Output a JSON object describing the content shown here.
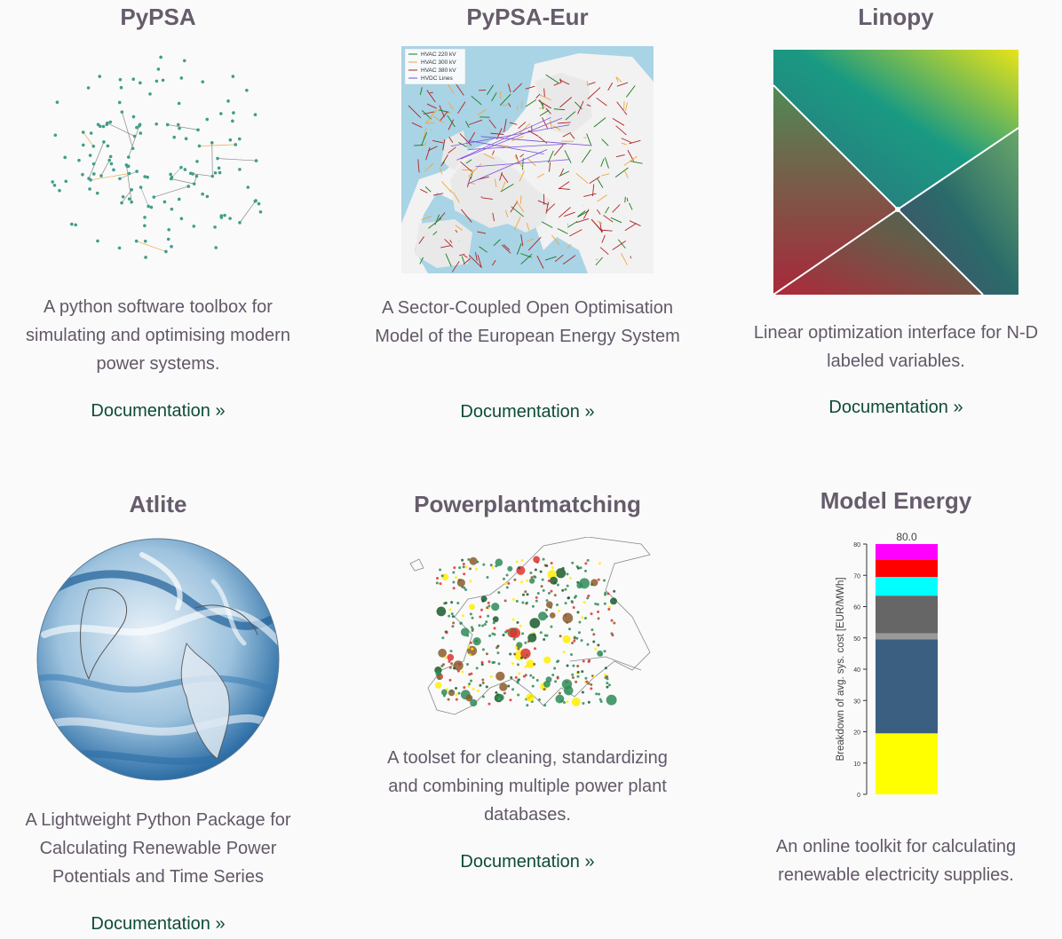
{
  "projects": [
    {
      "title": "PyPSA",
      "description": "A python software toolbox for simulating and optimising modern power systems.",
      "link_label": "Documentation »"
    },
    {
      "title": "PyPSA-Eur",
      "description": "A Sector-Coupled Open Optimisation Model of the European Energy System",
      "link_label": "Documentation »",
      "legend": [
        "HVAC 220 kV",
        "HVAC 300 kV",
        "HVAC 380 kV",
        "HVDC Lines"
      ]
    },
    {
      "title": "Linopy",
      "description": "Linear optimization interface for N-D labeled variables.",
      "link_label": "Documentation »"
    },
    {
      "title": "Atlite",
      "description": "A Lightweight Python Package for Calculating Renewable Power Potentials and Time Series",
      "link_label": "Documentation »"
    },
    {
      "title": "Powerplantmatching",
      "description": "A toolset for cleaning, standardizing and combining multiple power plant databases.",
      "link_label": "Documentation »"
    },
    {
      "title": "Model Energy",
      "description": "An online toolkit for calculating renewable electricity supplies.",
      "link_label": "Documentation »"
    }
  ],
  "chart_data": {
    "type": "bar",
    "stacked": true,
    "ylabel": "Breakdown of avg. sys. cost [EUR/MWh]",
    "ylim": [
      0,
      80
    ],
    "yticks": [
      "0",
      "10",
      "20",
      "30",
      "40",
      "50",
      "60",
      "70",
      "80"
    ],
    "total_label": "80.0",
    "series": [
      {
        "value": 19.5,
        "color": "#ffff00"
      },
      {
        "value": 30.0,
        "color": "#3b5f80"
      },
      {
        "value": 2.0,
        "color": "#9a9a9a"
      },
      {
        "value": 12.0,
        "color": "#666666"
      },
      {
        "value": 6.0,
        "color": "#00ffff"
      },
      {
        "value": 5.5,
        "color": "#ff0000"
      },
      {
        "value": 5.0,
        "color": "#ff00ff"
      }
    ]
  }
}
